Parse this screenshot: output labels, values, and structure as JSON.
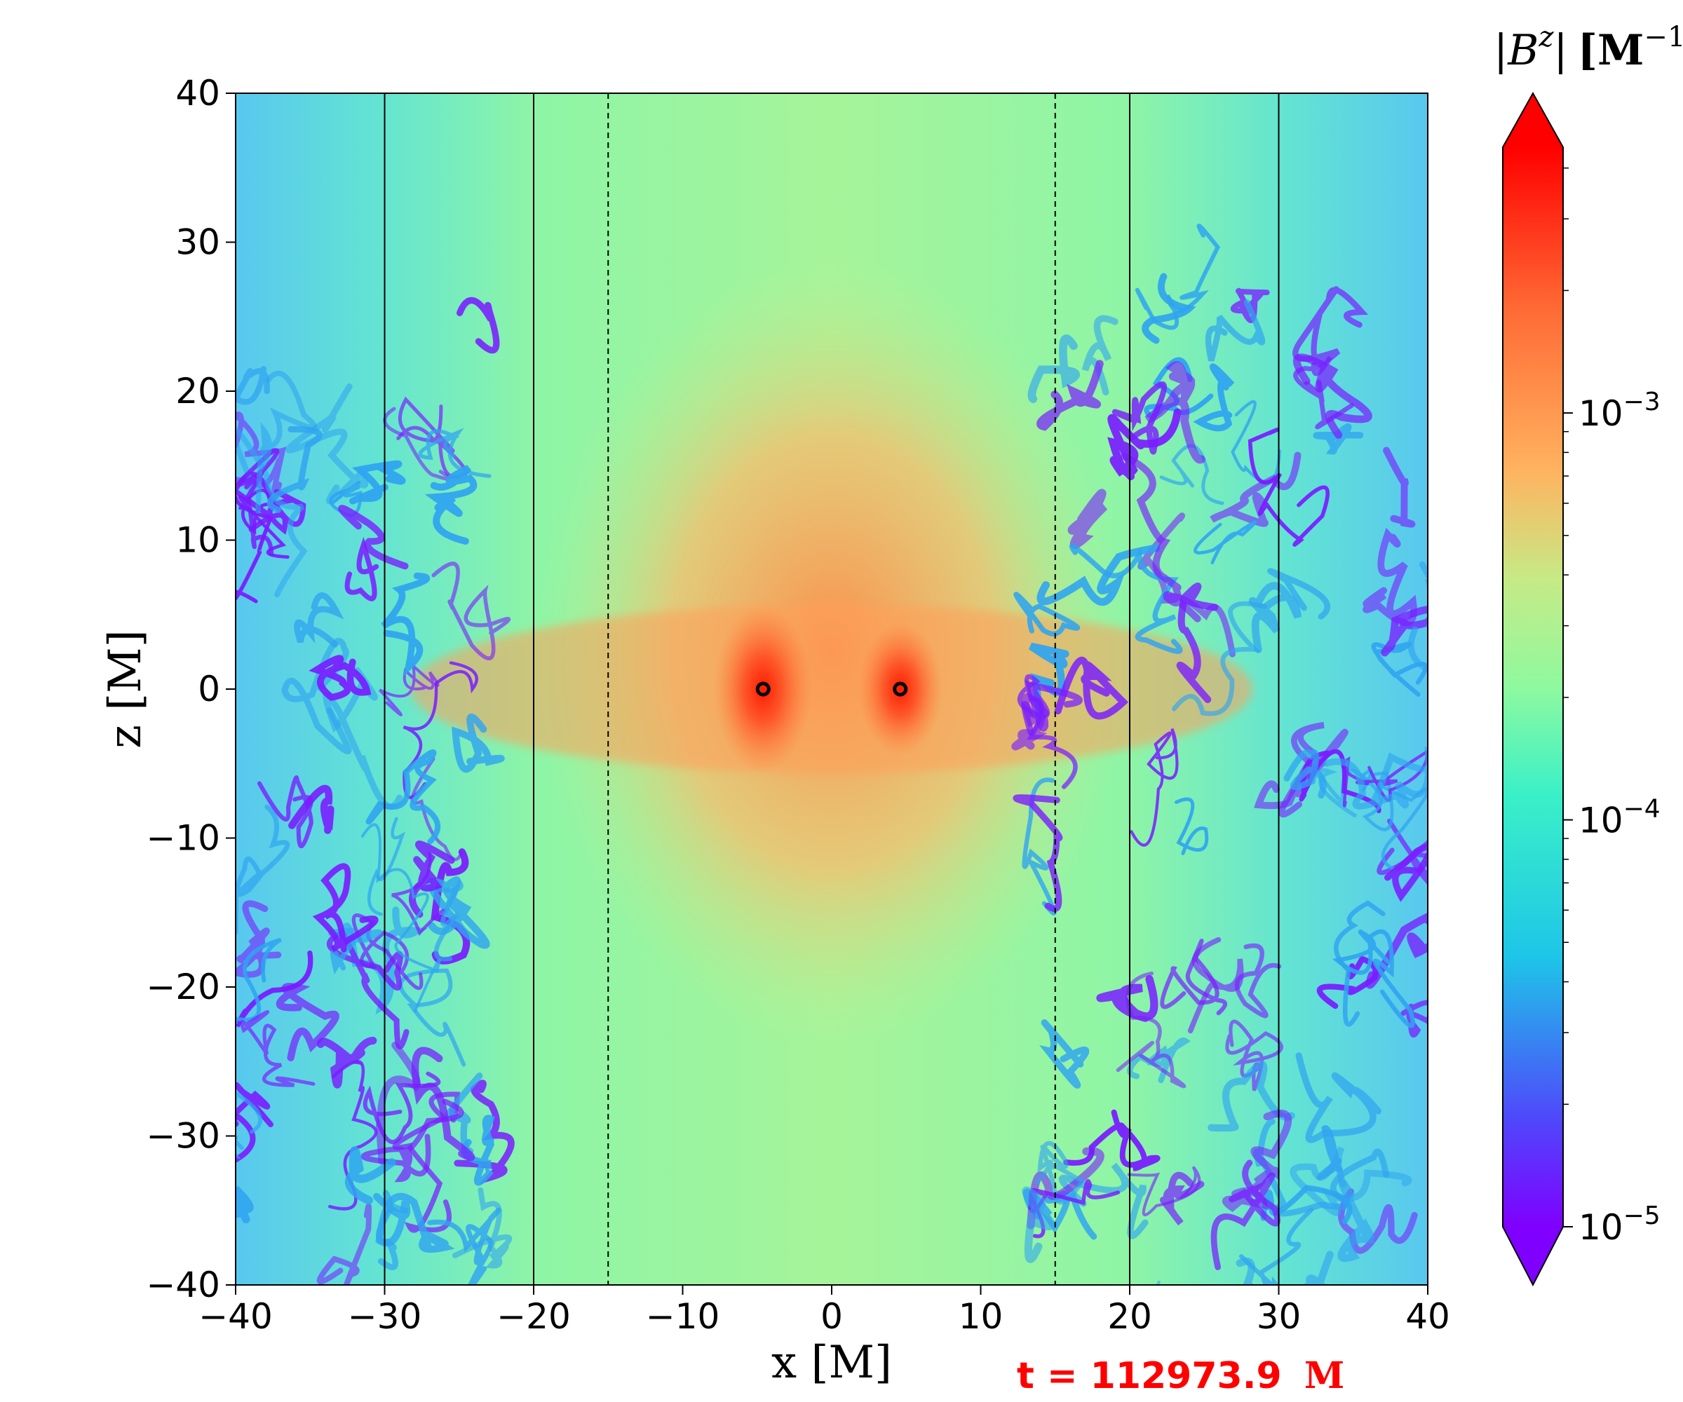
{
  "chart_data": {
    "type": "heatmap",
    "title": "",
    "xlabel": "x [M]",
    "ylabel": "z [M]",
    "xlim": [
      -40,
      40
    ],
    "ylim": [
      -40,
      40
    ],
    "x_ticks": [
      "−40",
      "−30",
      "−20",
      "−10",
      "0",
      "10",
      "20",
      "30",
      "40"
    ],
    "y_ticks": [
      "40",
      "30",
      "20",
      "10",
      "0",
      "−10",
      "−20",
      "−30",
      "−40"
    ],
    "x_tick_values": [
      -40,
      -30,
      -20,
      -10,
      0,
      10,
      20,
      30,
      40
    ],
    "y_tick_values": [
      40,
      30,
      20,
      10,
      0,
      -10,
      -20,
      -30,
      -40
    ],
    "colorbar": {
      "label": "|B^z| [M^-1]",
      "label_parts": {
        "bar": "|",
        "symbol": "B",
        "sup": "z",
        "unit": "[M",
        "unit_sup": "−1",
        "close": "]"
      },
      "scale": "log",
      "range": [
        1e-05,
        0.0045
      ],
      "extend": "both",
      "colormap": "rainbow",
      "ticks": [
        {
          "value": 0.001,
          "base": "10",
          "exp": "−3"
        },
        {
          "value": 0.0001,
          "base": "10",
          "exp": "−4"
        },
        {
          "value": 1e-05,
          "base": "10",
          "exp": "−5"
        }
      ]
    },
    "vertical_lines": [
      {
        "x": -30,
        "style": "solid"
      },
      {
        "x": -20,
        "style": "solid"
      },
      {
        "x": -15,
        "style": "dashed"
      },
      {
        "x": 15,
        "style": "dashed"
      },
      {
        "x": 20,
        "style": "solid"
      },
      {
        "x": 30,
        "style": "solid"
      }
    ],
    "markers": [
      {
        "x": -4.6,
        "z": 0
      },
      {
        "x": 4.6,
        "z": 0
      }
    ],
    "annotation": {
      "prefix": "t = 112973.9",
      "unit": "M"
    }
  },
  "colors": {
    "background_field": "#86f3a4",
    "strong_field": "#ff5a2a",
    "weak_field": "#7a1cff",
    "annotation": "#ff0000"
  }
}
